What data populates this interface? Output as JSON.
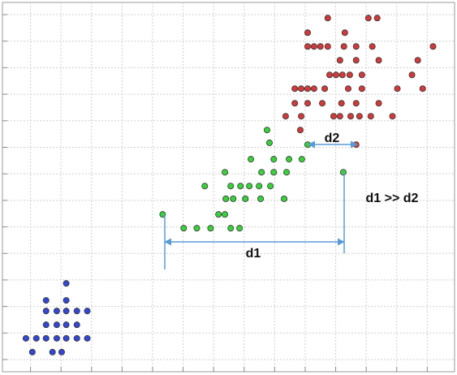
{
  "chart_data": {
    "type": "scatter",
    "annotations": [
      "d1",
      "d2",
      "d1 >> d2"
    ],
    "xlim": [
      0,
      14.9
    ],
    "ylim": [
      -0.46,
      13.46
    ],
    "xticks": [
      1,
      2,
      3,
      4,
      5,
      6,
      7,
      8,
      9,
      10,
      11,
      12,
      13,
      14
    ],
    "yticks": [
      0,
      1,
      2,
      3,
      4,
      5,
      6,
      7,
      8,
      9,
      10,
      11,
      12,
      13
    ],
    "grid": true,
    "series": [
      {
        "color": "#3347d1",
        "x": [
          2.17,
          1.51,
          2.17,
          1.51,
          1.86,
          2.17,
          2.52,
          2.86,
          1.51,
          1.86,
          2.17,
          2.52,
          0.85,
          1.19,
          1.51,
          1.86,
          2.17,
          2.52,
          2.86,
          1.06,
          1.72,
          2.02
        ],
        "y": [
          2.87,
          2.23,
          2.23,
          1.83,
          1.83,
          1.83,
          1.83,
          1.83,
          1.31,
          1.31,
          1.31,
          1.31,
          0.8,
          0.8,
          0.8,
          0.8,
          0.8,
          0.8,
          0.8,
          0.28,
          0.28,
          0.28
        ]
      },
      {
        "color": "#39d13b",
        "x": [
          8.75,
          8.83,
          10.08,
          8.22,
          8.97,
          9.47,
          9.89,
          7.37,
          8.57,
          8.97,
          9.39,
          11.25,
          6.71,
          7.56,
          7.88,
          8.17,
          8.49,
          8.86,
          7.4,
          7.64,
          8.04,
          8.54,
          9.31,
          7.16,
          7.37,
          5.33,
          6.02,
          6.45,
          6.9,
          7.56,
          7.85
        ],
        "y": [
          8.65,
          8.17,
          8.1,
          7.55,
          7.55,
          7.55,
          7.55,
          7.06,
          7.06,
          7.06,
          7.06,
          7.06,
          6.54,
          6.54,
          6.54,
          6.54,
          6.54,
          6.54,
          6.06,
          6.06,
          6.06,
          6.06,
          6.06,
          5.47,
          5.47,
          5.47,
          4.95,
          4.95,
          4.95,
          4.95,
          4.95
        ]
      },
      {
        "color": "#d13a3a",
        "x": [
          10.74,
          12.07,
          12.36,
          10.08,
          11.3,
          10.08,
          10.29,
          10.5,
          10.74,
          11.27,
          11.67,
          12.2,
          14.19,
          11.14,
          11.67,
          12.41,
          13.69,
          10.8,
          11.01,
          11.22,
          11.46,
          11.86,
          13.5,
          9.66,
          9.87,
          10.08,
          10.29,
          10.64,
          11.41,
          11.86,
          13.02,
          13.85,
          9.66,
          10.08,
          10.56,
          11.19,
          11.67,
          12.41,
          9.36,
          9.87,
          10.93,
          11.14,
          11.49,
          11.78,
          12.15,
          12.86,
          9.84,
          11.67
        ],
        "y": [
          12.87,
          12.87,
          12.87,
          12.32,
          12.32,
          11.8,
          11.8,
          11.8,
          11.8,
          11.8,
          11.8,
          11.8,
          11.8,
          11.28,
          11.28,
          11.28,
          11.28,
          10.73,
          10.73,
          10.73,
          10.73,
          10.73,
          10.73,
          10.21,
          10.21,
          10.21,
          10.21,
          10.21,
          10.21,
          10.21,
          10.21,
          10.21,
          9.66,
          9.66,
          9.66,
          9.66,
          9.66,
          9.66,
          9.17,
          9.17,
          9.17,
          9.17,
          9.17,
          9.17,
          9.17,
          9.17,
          8.65,
          8.1
        ]
      }
    ]
  }
}
